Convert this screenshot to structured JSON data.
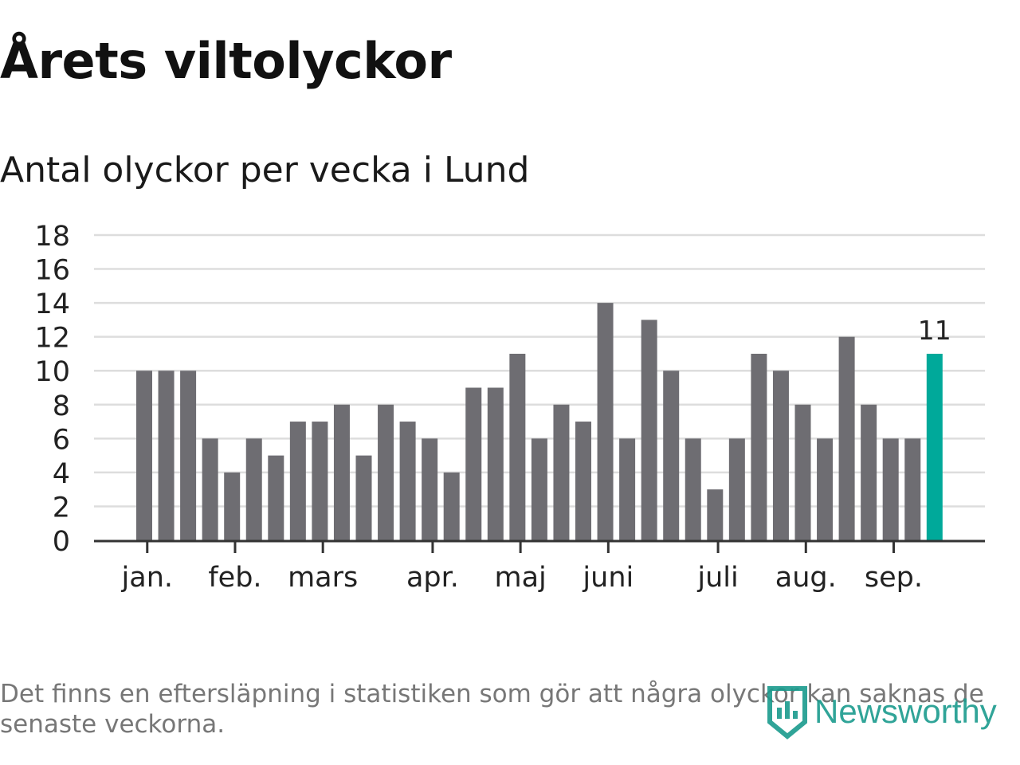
{
  "title": "Årets viltolyckor",
  "subtitle": "Antal olyckor per vecka i Lund",
  "footnote": "Det finns en eftersläpning i statistiken som gör att några olyckor kan saknas de senaste veckorna.",
  "brand": {
    "name": "Newsworthy",
    "icon": "newsworthy-logo-icon"
  },
  "colors": {
    "bar": "#6e6d72",
    "highlight": "#00a99a",
    "grid": "#dddddd",
    "axis": "#333333"
  },
  "chart_data": {
    "type": "bar",
    "values": [
      10,
      10,
      10,
      6,
      4,
      6,
      5,
      7,
      7,
      8,
      5,
      8,
      7,
      6,
      4,
      9,
      9,
      11,
      6,
      8,
      7,
      14,
      6,
      13,
      10,
      6,
      3,
      6,
      11,
      10,
      8,
      6,
      12,
      8,
      6,
      6,
      11
    ],
    "highlight_last": true,
    "highlight_label": "11",
    "ylim": [
      0,
      18
    ],
    "yticks": [
      "0",
      "2",
      "4",
      "6",
      "8",
      "10",
      "12",
      "14",
      "16",
      "18"
    ],
    "month_ticks": [
      {
        "label": "jan.",
        "bar_index": 0.5
      },
      {
        "label": "feb.",
        "bar_index": 4.5
      },
      {
        "label": "mars",
        "bar_index": 8.5
      },
      {
        "label": "apr.",
        "bar_index": 13.5
      },
      {
        "label": "maj",
        "bar_index": 17.5
      },
      {
        "label": "juni",
        "bar_index": 21.5
      },
      {
        "label": "juli",
        "bar_index": 26.5
      },
      {
        "label": "aug.",
        "bar_index": 30.5
      },
      {
        "label": "sep.",
        "bar_index": 34.5
      }
    ],
    "grid": true
  }
}
